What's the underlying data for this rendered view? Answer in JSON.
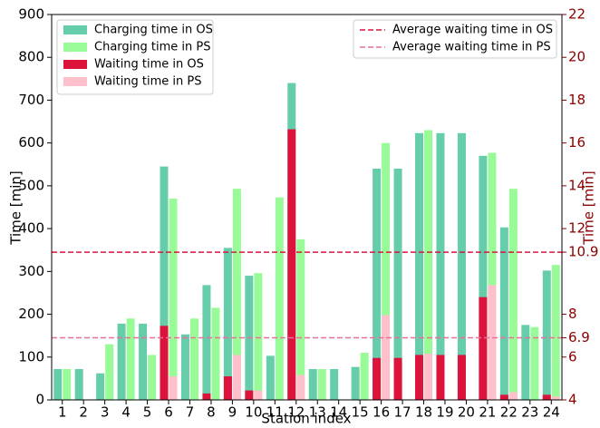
{
  "chart_data": {
    "type": "bar",
    "xlabel": "Station index",
    "ylabel": "Time [min]",
    "y2label": "Time [min]",
    "categories": [
      "1",
      "2",
      "3",
      "4",
      "5",
      "6",
      "7",
      "8",
      "9",
      "10",
      "11",
      "12",
      "13",
      "14",
      "15",
      "16",
      "17",
      "18",
      "19",
      "20",
      "21",
      "22",
      "23",
      "24"
    ],
    "series": [
      {
        "name": "Charging time in OS",
        "color": "#66cdaa",
        "values": [
          72,
          72,
          62,
          178,
          178,
          545,
          153,
          268,
          355,
          290,
          103,
          740,
          72,
          72,
          77,
          540,
          540,
          623,
          623,
          623,
          570,
          403,
          175,
          302
        ]
      },
      {
        "name": "Charging time in PS",
        "color": "#98fb98",
        "values": [
          72,
          0,
          130,
          190,
          105,
          470,
          190,
          215,
          493,
          296,
          473,
          375,
          72,
          0,
          110,
          600,
          0,
          630,
          0,
          0,
          577,
          493,
          170,
          315
        ]
      },
      {
        "name": "Waiting time in OS",
        "color": "#dc143c",
        "values": [
          0,
          0,
          0,
          0,
          0,
          173,
          0,
          15,
          55,
          22,
          0,
          632,
          0,
          0,
          0,
          98,
          98,
          105,
          105,
          105,
          240,
          12,
          0,
          12
        ]
      },
      {
        "name": "Waiting time in PS",
        "color": "#ffc0cb",
        "values": [
          0,
          0,
          0,
          0,
          0,
          55,
          0,
          0,
          105,
          22,
          0,
          58,
          0,
          0,
          0,
          198,
          0,
          108,
          0,
          0,
          268,
          18,
          0,
          8
        ]
      }
    ],
    "lines": [
      {
        "name": "Average waiting time in OS",
        "color": "#dc143c",
        "value": 10.9,
        "axis": "y2"
      },
      {
        "name": "Average waiting time in PS",
        "color": "#e8709a",
        "value": 6.9,
        "axis": "y2"
      }
    ],
    "ylim": [
      0,
      900
    ],
    "yticks": [
      0,
      100,
      200,
      300,
      400,
      500,
      600,
      700,
      800,
      900
    ],
    "y2lim": [
      4,
      22
    ],
    "y2ticks": [
      4,
      6,
      6.9,
      8,
      10.9,
      12,
      14,
      16,
      18,
      20,
      22
    ]
  }
}
